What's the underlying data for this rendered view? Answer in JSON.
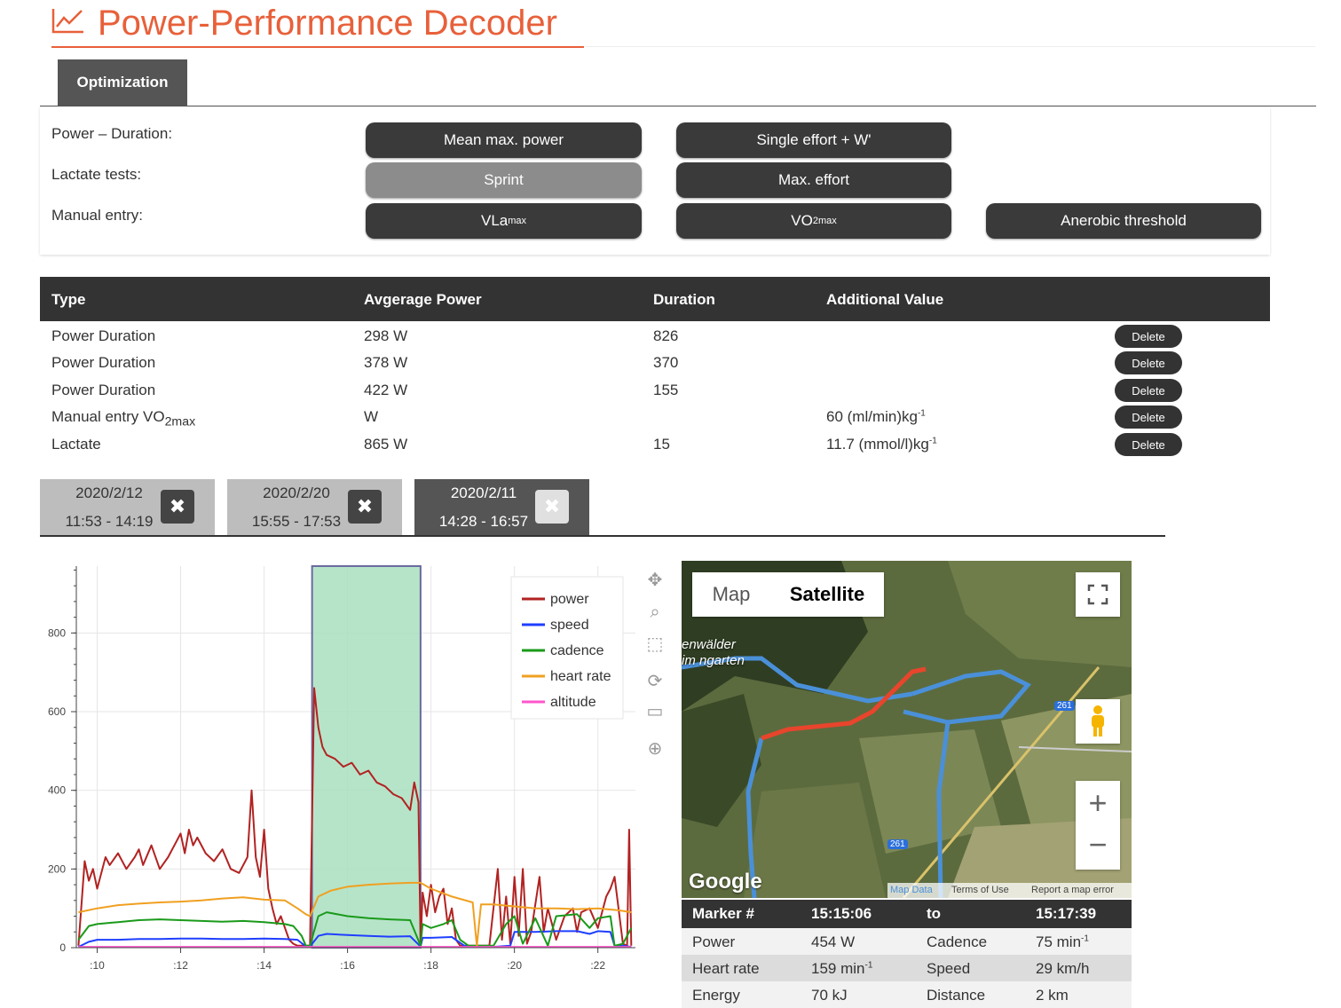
{
  "app": {
    "title": "Power-Performance Decoder",
    "accent_color": "#e8603a",
    "title_icon": "line-chart-icon"
  },
  "tabs": [
    {
      "label": "Optimization",
      "active": true
    }
  ],
  "entry_panel": {
    "rows": [
      {
        "label": "Power – Duration:",
        "buttons": [
          "Mean max. power",
          "Single effort + W'"
        ]
      },
      {
        "label": "Lactate tests:",
        "buttons": [
          "Sprint",
          "Max. effort"
        ]
      },
      {
        "label": "Manual entry:",
        "buttons": [
          "VLa",
          "VO",
          "Anerobic threshold"
        ]
      }
    ],
    "vla_sub": "max",
    "vo2_sub": "2max"
  },
  "results_table": {
    "headers": [
      "Type",
      "Avgerage Power",
      "Duration",
      "Additional Value"
    ],
    "delete_label": "Delete",
    "rows": [
      {
        "type": "Power Duration",
        "power": "298 W",
        "duration": "826",
        "additional": ""
      },
      {
        "type": "Power Duration",
        "power": "378 W",
        "duration": "370",
        "additional": ""
      },
      {
        "type": "Power Duration",
        "power": "422 W",
        "duration": "155",
        "additional": ""
      },
      {
        "type": "Manual entry VO",
        "type_sub": "2max",
        "power": "W",
        "duration": "",
        "additional": "60 (ml/min)kg",
        "additional_sup": "-1"
      },
      {
        "type": "Lactate",
        "power": "865 W",
        "duration": "15",
        "additional": "11.7 (mmol/l)kg",
        "additional_sup": "-1"
      }
    ]
  },
  "sessions": [
    {
      "date": "2020/2/12",
      "time": "11:53 - 14:19",
      "active": false
    },
    {
      "date": "2020/2/20",
      "time": "15:55 - 17:53",
      "active": false
    },
    {
      "date": "2020/2/11",
      "time": "14:28 - 16:57",
      "active": true
    }
  ],
  "session_close_icon": "close-icon",
  "chart_data": {
    "type": "line",
    "x_ticks": [
      ":10",
      ":12",
      ":14",
      ":16",
      ":18",
      ":20",
      ":22"
    ],
    "y_ticks": [
      "0",
      "200",
      "400",
      "600",
      "800"
    ],
    "ylim": [
      0,
      970
    ],
    "xlim": [
      9.5,
      22.9
    ],
    "grid": true,
    "legend_position": "top-right",
    "selection_range": [
      15.15,
      17.75
    ],
    "selection_color": "#a9dfbf",
    "series": [
      {
        "name": "power",
        "color": "#b22222",
        "x": [
          9.55,
          9.7,
          9.8,
          9.9,
          10.0,
          10.1,
          10.2,
          10.3,
          10.5,
          10.7,
          10.9,
          11.0,
          11.1,
          11.3,
          11.5,
          11.7,
          11.9,
          12.0,
          12.1,
          12.2,
          12.3,
          12.4,
          12.6,
          12.8,
          13.0,
          13.2,
          13.4,
          13.6,
          13.7,
          13.8,
          13.9,
          14.0,
          14.1,
          14.2,
          14.3,
          14.4,
          14.5,
          14.6,
          14.7,
          14.8,
          14.9,
          15.0,
          15.05,
          15.1,
          15.2,
          15.3,
          15.4,
          15.5,
          15.7,
          15.9,
          16.1,
          16.3,
          16.5,
          16.7,
          16.9,
          17.1,
          17.3,
          17.5,
          17.6,
          17.7,
          17.75,
          17.8,
          17.9,
          18.0,
          18.1,
          18.2,
          18.3,
          18.4,
          18.5,
          18.6,
          18.7,
          18.8,
          18.9,
          19.0,
          19.2,
          19.4,
          19.6,
          19.7,
          19.8,
          19.9,
          20.0,
          20.1,
          20.2,
          20.3,
          20.4,
          20.5,
          20.6,
          20.7,
          20.8,
          21.0,
          21.2,
          21.4,
          21.5,
          21.6,
          21.8,
          22.0,
          22.2,
          22.3,
          22.4,
          22.6,
          22.7,
          22.75,
          22.8
        ],
        "y": [
          5,
          220,
          170,
          200,
          150,
          190,
          230,
          210,
          240,
          200,
          230,
          250,
          210,
          260,
          200,
          230,
          270,
          290,
          240,
          300,
          260,
          280,
          240,
          220,
          250,
          200,
          190,
          230,
          400,
          230,
          180,
          300,
          150,
          100,
          60,
          80,
          50,
          20,
          10,
          5,
          5,
          5,
          5,
          5,
          660,
          560,
          510,
          490,
          480,
          460,
          470,
          440,
          450,
          420,
          410,
          390,
          380,
          350,
          420,
          370,
          5,
          140,
          80,
          160,
          90,
          130,
          150,
          60,
          100,
          20,
          5,
          5,
          5,
          5,
          5,
          5,
          200,
          20,
          130,
          10,
          180,
          30,
          200,
          10,
          40,
          110,
          180,
          40,
          100,
          20,
          80,
          100,
          40,
          90,
          100,
          50,
          130,
          150,
          180,
          10,
          5,
          300,
          5
        ]
      },
      {
        "name": "speed",
        "color": "#1f3fff",
        "x": [
          9.55,
          9.8,
          10.0,
          10.5,
          11.0,
          11.5,
          12.0,
          12.5,
          13.0,
          13.5,
          14.0,
          14.5,
          14.8,
          15.0,
          15.1,
          15.3,
          15.5,
          16.0,
          16.5,
          17.0,
          17.5,
          17.75,
          17.8,
          18.0,
          18.5,
          18.8,
          19.0,
          19.5,
          19.9,
          20.0,
          20.5,
          21.0,
          21.5,
          21.8,
          22.0,
          22.3,
          22.4,
          22.6,
          22.8
        ],
        "y": [
          2,
          15,
          20,
          20,
          22,
          22,
          23,
          23,
          22,
          22,
          23,
          22,
          20,
          3,
          3,
          30,
          35,
          32,
          30,
          28,
          29,
          3,
          25,
          25,
          27,
          5,
          2,
          2,
          5,
          40,
          40,
          42,
          42,
          35,
          42,
          40,
          5,
          5,
          2
        ]
      },
      {
        "name": "cadence",
        "color": "#1a9a1a",
        "x": [
          9.55,
          9.8,
          10.0,
          10.5,
          11.0,
          11.5,
          12.0,
          12.5,
          13.0,
          13.5,
          14.0,
          14.5,
          14.7,
          14.9,
          15.0,
          15.1,
          15.3,
          15.5,
          16.0,
          16.5,
          17.0,
          17.5,
          17.75,
          17.8,
          18.0,
          18.3,
          18.5,
          18.7,
          18.9,
          19.0,
          19.5,
          19.8,
          20.0,
          20.2,
          20.5,
          20.8,
          21.0,
          21.5,
          21.8,
          22.0,
          22.3,
          22.4,
          22.6,
          22.8
        ],
        "y": [
          20,
          55,
          60,
          65,
          70,
          72,
          70,
          68,
          66,
          68,
          65,
          60,
          55,
          30,
          5,
          5,
          80,
          90,
          80,
          75,
          72,
          70,
          5,
          60,
          50,
          60,
          70,
          20,
          5,
          5,
          5,
          60,
          80,
          10,
          75,
          5,
          80,
          85,
          50,
          75,
          80,
          5,
          10,
          50
        ]
      },
      {
        "name": "heart rate",
        "color": "#f0a020",
        "x": [
          9.55,
          10.0,
          10.5,
          11.0,
          11.5,
          12.0,
          12.5,
          13.0,
          13.5,
          14.0,
          14.5,
          14.8,
          15.0,
          15.1,
          15.3,
          15.6,
          16.0,
          16.5,
          17.0,
          17.5,
          17.75,
          18.0,
          18.5,
          19.0,
          19.1,
          19.2,
          19.5,
          20.0,
          20.5,
          21.0,
          21.5,
          22.0,
          22.5,
          22.8
        ],
        "y": [
          90,
          100,
          108,
          112,
          115,
          117,
          120,
          125,
          128,
          122,
          120,
          100,
          85,
          80,
          130,
          145,
          155,
          160,
          163,
          165,
          165,
          150,
          130,
          115,
          5,
          110,
          110,
          105,
          100,
          100,
          98,
          100,
          95,
          90
        ]
      },
      {
        "name": "altitude",
        "color": "#ff55cc",
        "x": [
          9.55,
          22.8
        ],
        "y": [
          2,
          2
        ]
      }
    ]
  },
  "chart_tools": [
    "pan-icon",
    "zoom-icon",
    "box-select-icon",
    "reset-icon",
    "save-icon",
    "hover-icon"
  ],
  "map": {
    "type_map": "Map",
    "type_satellite": "Satellite",
    "place_label": "enwälder im ngarten",
    "road_label": "261",
    "logo": "Google",
    "footer_data": "Map Data",
    "footer_terms": "Terms of Use",
    "footer_report": "Report a map error",
    "zoom_in": "+",
    "zoom_out": "−",
    "fullscreen_icon": "fullscreen-icon",
    "pegman_icon": "street-view-pegman-icon",
    "route_color": "#4a90d9",
    "segment_color": "#e8452c"
  },
  "marker_info": {
    "header": [
      "Marker #",
      "15:15:06",
      "to",
      "15:17:39"
    ],
    "rows": [
      {
        "l1": "Power",
        "v1": "454 W",
        "l2": "Cadence",
        "v2": "75 min",
        "v2_sup": "-1"
      },
      {
        "l1": "Heart rate",
        "v1": "159 min",
        "v1_sup": "-1",
        "l2": "Speed",
        "v2": "29 km/h"
      },
      {
        "l1": "Energy",
        "v1": "70 kJ",
        "l2": "Distance",
        "v2": "2 km"
      }
    ]
  }
}
